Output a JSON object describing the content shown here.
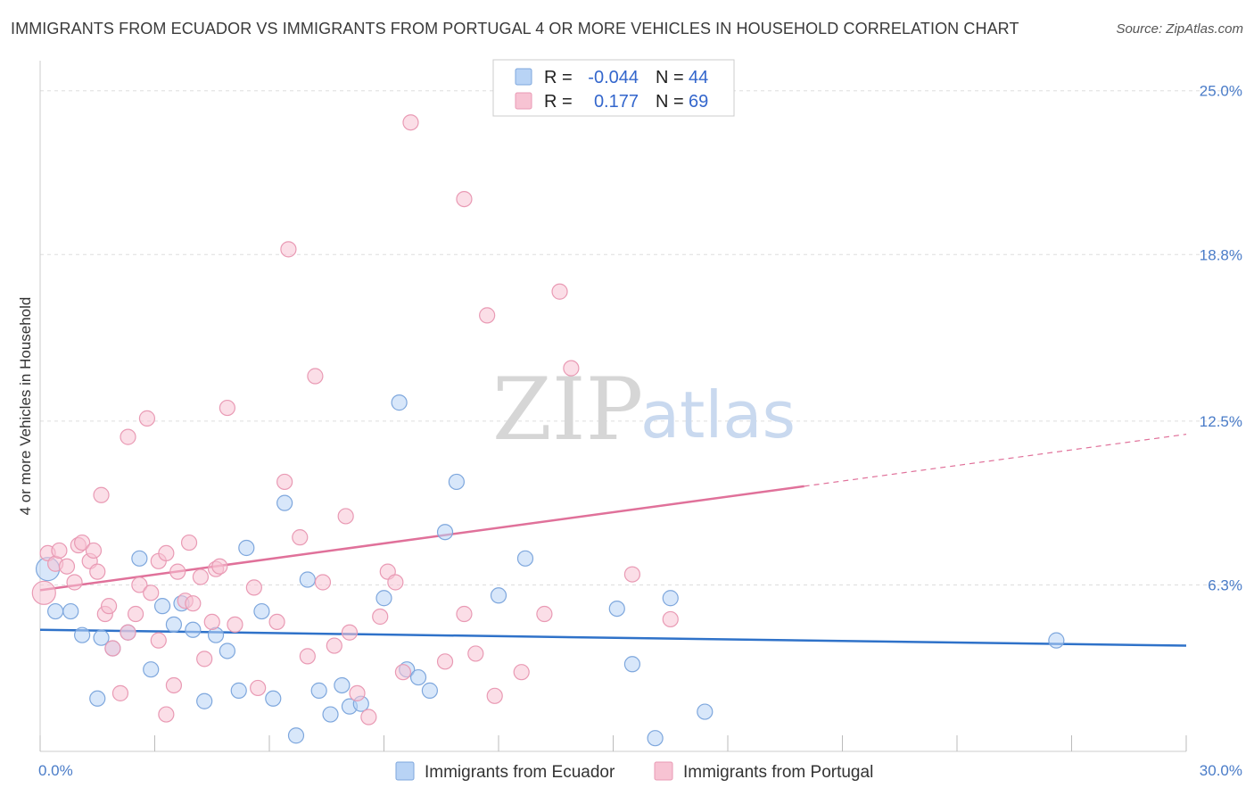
{
  "title": "IMMIGRANTS FROM ECUADOR VS IMMIGRANTS FROM PORTUGAL 4 OR MORE VEHICLES IN HOUSEHOLD CORRELATION CHART",
  "source": "Source: ZipAtlas.com",
  "watermark": {
    "zip": "ZIP",
    "atlas": "atlas"
  },
  "colors": {
    "ecuador_fill": "#b8d3f5",
    "ecuador_stroke": "#7ea7dd",
    "ecuador_line": "#2f72c9",
    "portugal_fill": "#f7c3d3",
    "portugal_stroke": "#e99ab4",
    "portugal_line": "#e0719a",
    "tick_label": "#4a7cc8",
    "grid": "#dddddd"
  },
  "legend": {
    "rows": [
      {
        "r_label": "R =",
        "r_value": "-0.044",
        "n_label": "N =",
        "n_value": "44"
      },
      {
        "r_label": "R =",
        "r_value": "0.177",
        "n_label": "N =",
        "n_value": "69"
      }
    ]
  },
  "chart_data": {
    "type": "scatter",
    "title": "IMMIGRANTS FROM ECUADOR VS IMMIGRANTS FROM PORTUGAL 4 OR MORE VEHICLES IN HOUSEHOLD CORRELATION CHART",
    "xlabel": "",
    "ylabel": "4 or more Vehicles in Household",
    "xlim": [
      0,
      30
    ],
    "ylim": [
      0,
      25.8
    ],
    "x_tick_labels": [
      "0.0%",
      "30.0%"
    ],
    "y_ticks": [
      6.3,
      12.5,
      18.8,
      25.0
    ],
    "y_tick_labels": [
      "6.3%",
      "12.5%",
      "18.8%",
      "25.0%"
    ],
    "grid": true,
    "legend_placement": "top-center",
    "series": [
      {
        "name": "Immigrants from Ecuador",
        "r": -0.044,
        "n": 44,
        "trend": {
          "x0": 0,
          "y0": 4.6,
          "x1": 30,
          "y1": 4.0,
          "dashed_from": null
        },
        "points": [
          [
            0.2,
            6.9
          ],
          [
            0.4,
            5.3
          ],
          [
            0.8,
            5.3
          ],
          [
            1.1,
            4.4
          ],
          [
            1.5,
            2.0
          ],
          [
            1.6,
            4.3
          ],
          [
            1.9,
            3.9
          ],
          [
            2.3,
            4.5
          ],
          [
            2.6,
            7.3
          ],
          [
            2.9,
            3.1
          ],
          [
            3.2,
            5.5
          ],
          [
            3.5,
            4.8
          ],
          [
            3.7,
            5.6
          ],
          [
            4.0,
            4.6
          ],
          [
            4.3,
            1.9
          ],
          [
            4.6,
            4.4
          ],
          [
            4.9,
            3.8
          ],
          [
            5.2,
            2.3
          ],
          [
            5.4,
            7.7
          ],
          [
            5.8,
            5.3
          ],
          [
            6.1,
            2.0
          ],
          [
            6.4,
            9.4
          ],
          [
            6.7,
            0.6
          ],
          [
            7.0,
            6.5
          ],
          [
            7.3,
            2.3
          ],
          [
            7.6,
            1.4
          ],
          [
            7.9,
            2.5
          ],
          [
            8.1,
            1.7
          ],
          [
            8.4,
            1.8
          ],
          [
            9.0,
            5.8
          ],
          [
            9.4,
            13.2
          ],
          [
            9.6,
            3.1
          ],
          [
            9.9,
            2.8
          ],
          [
            10.2,
            2.3
          ],
          [
            10.6,
            8.3
          ],
          [
            10.9,
            10.2
          ],
          [
            12.0,
            5.9
          ],
          [
            12.7,
            7.3
          ],
          [
            15.1,
            5.4
          ],
          [
            15.5,
            3.3
          ],
          [
            16.1,
            0.5
          ],
          [
            16.5,
            5.8
          ],
          [
            17.4,
            1.5
          ],
          [
            26.6,
            4.2
          ]
        ]
      },
      {
        "name": "Immigrants from Portugal",
        "r": 0.177,
        "n": 69,
        "trend": {
          "x0": 0,
          "y0": 6.1,
          "x1": 30,
          "y1": 12.0,
          "dashed_from": 20.0
        },
        "points": [
          [
            0.1,
            6.0
          ],
          [
            0.2,
            7.5
          ],
          [
            0.4,
            7.1
          ],
          [
            0.5,
            7.6
          ],
          [
            0.7,
            7.0
          ],
          [
            0.9,
            6.4
          ],
          [
            1.0,
            7.8
          ],
          [
            1.1,
            7.9
          ],
          [
            1.3,
            7.2
          ],
          [
            1.4,
            7.6
          ],
          [
            1.5,
            6.8
          ],
          [
            1.6,
            9.7
          ],
          [
            1.7,
            5.2
          ],
          [
            1.8,
            5.5
          ],
          [
            1.9,
            3.9
          ],
          [
            2.1,
            2.2
          ],
          [
            2.3,
            4.5
          ],
          [
            2.3,
            11.9
          ],
          [
            2.5,
            5.2
          ],
          [
            2.6,
            6.3
          ],
          [
            2.8,
            12.6
          ],
          [
            2.9,
            6.0
          ],
          [
            3.1,
            7.2
          ],
          [
            3.1,
            4.2
          ],
          [
            3.3,
            1.4
          ],
          [
            3.3,
            7.5
          ],
          [
            3.5,
            2.5
          ],
          [
            3.6,
            6.8
          ],
          [
            3.8,
            5.7
          ],
          [
            3.9,
            7.9
          ],
          [
            4.0,
            5.6
          ],
          [
            4.2,
            6.6
          ],
          [
            4.3,
            3.5
          ],
          [
            4.5,
            4.9
          ],
          [
            4.6,
            6.9
          ],
          [
            4.7,
            7.0
          ],
          [
            4.9,
            13.0
          ],
          [
            5.1,
            4.8
          ],
          [
            5.6,
            6.2
          ],
          [
            5.7,
            2.4
          ],
          [
            6.2,
            4.9
          ],
          [
            6.4,
            10.2
          ],
          [
            6.5,
            19.0
          ],
          [
            6.8,
            8.1
          ],
          [
            7.0,
            3.6
          ],
          [
            7.2,
            14.2
          ],
          [
            7.4,
            6.4
          ],
          [
            7.7,
            4.0
          ],
          [
            8.0,
            8.9
          ],
          [
            8.1,
            4.5
          ],
          [
            8.3,
            2.2
          ],
          [
            8.6,
            1.3
          ],
          [
            8.9,
            5.1
          ],
          [
            9.1,
            6.8
          ],
          [
            9.3,
            6.4
          ],
          [
            9.5,
            3.0
          ],
          [
            9.7,
            23.8
          ],
          [
            10.6,
            3.4
          ],
          [
            11.1,
            20.9
          ],
          [
            11.1,
            5.2
          ],
          [
            11.4,
            3.7
          ],
          [
            11.7,
            16.5
          ],
          [
            11.9,
            2.1
          ],
          [
            12.6,
            3.0
          ],
          [
            13.2,
            5.2
          ],
          [
            13.6,
            17.4
          ],
          [
            13.9,
            14.5
          ],
          [
            15.5,
            6.7
          ],
          [
            16.5,
            5.0
          ]
        ]
      }
    ]
  }
}
